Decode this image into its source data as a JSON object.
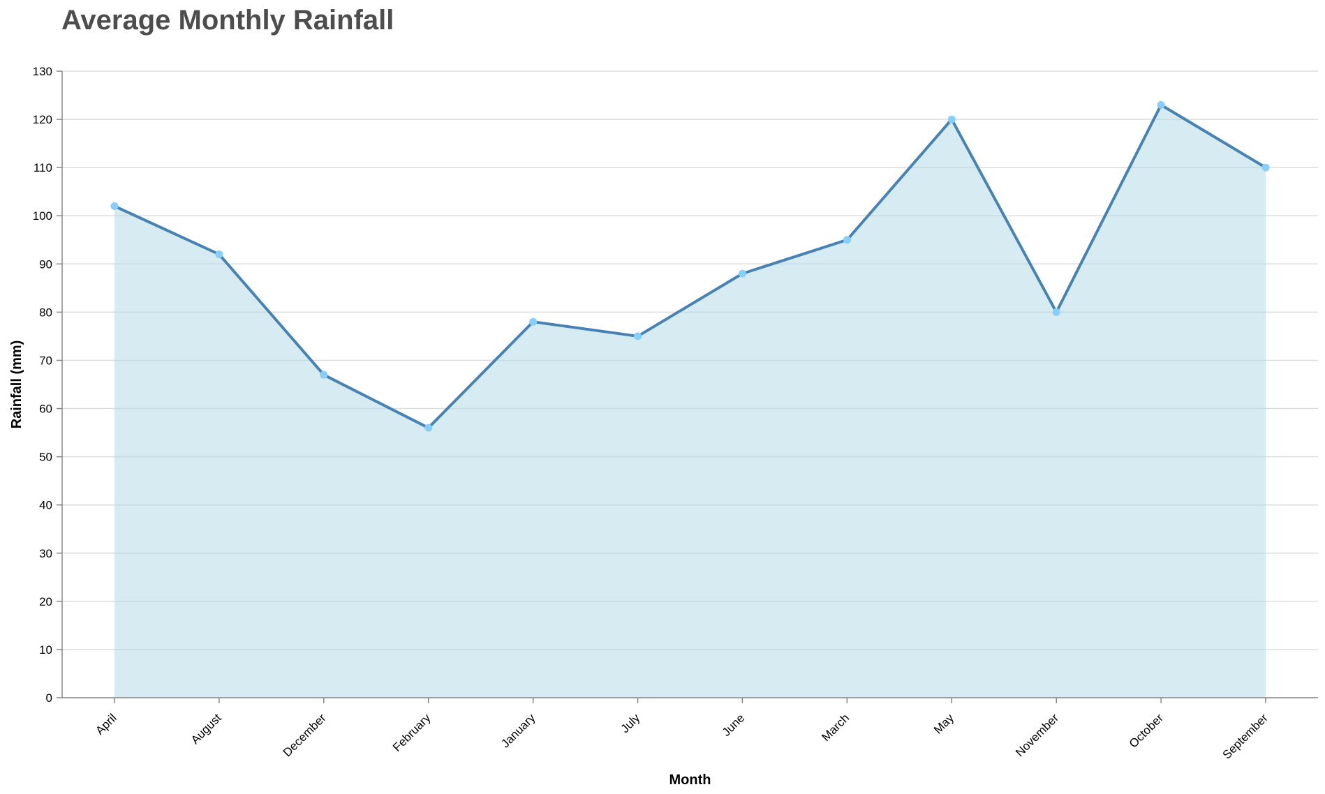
{
  "chart_data": {
    "type": "area",
    "title": "Average Monthly Rainfall",
    "xlabel": "Month",
    "ylabel": "Rainfall (mm)",
    "ylim": [
      0,
      130
    ],
    "yticks": [
      0,
      10,
      20,
      30,
      40,
      50,
      60,
      70,
      80,
      90,
      100,
      110,
      120,
      130
    ],
    "categories": [
      "April",
      "August",
      "December",
      "February",
      "January",
      "July",
      "June",
      "March",
      "May",
      "November",
      "October",
      "September"
    ],
    "series": [
      {
        "values": [
          102,
          92,
          67,
          56,
          78,
          75,
          88,
          95,
          120,
          80,
          123,
          110
        ]
      }
    ],
    "grid": true,
    "colors": {
      "line": "#4682b4",
      "area": "#add8e6",
      "point": "#87cefa",
      "title": "#4d4d4d"
    }
  }
}
